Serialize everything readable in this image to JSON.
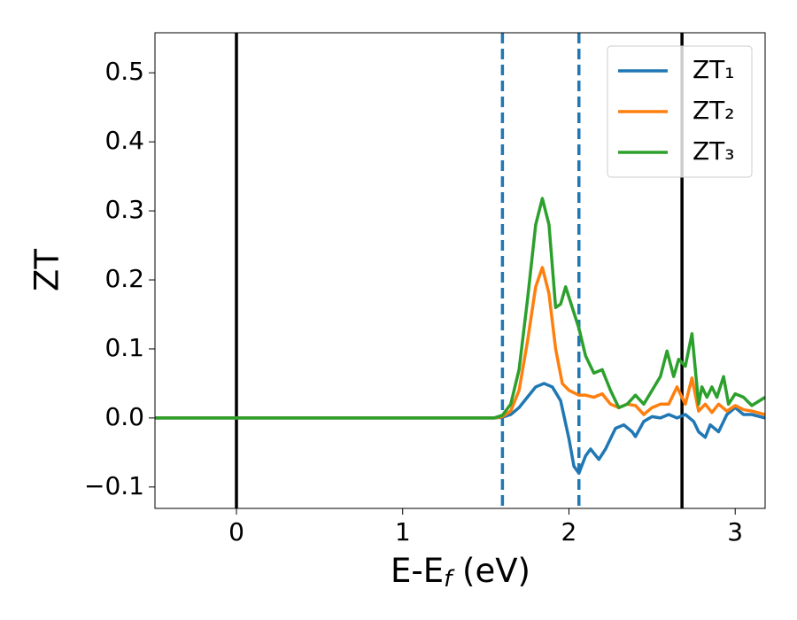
{
  "chart_data": {
    "type": "line",
    "xlabel": {
      "main": "E-E",
      "sub": "f",
      "unit": "(eV)"
    },
    "ylabel": "ZT",
    "xlim": [
      -0.49,
      3.18
    ],
    "ylim": [
      -0.131,
      0.558
    ],
    "xticks": [
      0,
      1,
      2,
      3
    ],
    "yticks": [
      {
        "value": -0.1,
        "label": "−0.1"
      },
      {
        "value": 0,
        "label": "0.0"
      },
      0.1,
      0.2,
      0.3,
      0.4,
      0.5
    ],
    "legend": "upper right",
    "vlines": [
      {
        "x": 0,
        "color": "#000000",
        "style": "solid"
      },
      {
        "x": 2.68,
        "color": "#000000",
        "style": "solid"
      },
      {
        "x": 1.6,
        "color": "#1f77b4",
        "style": "dashed"
      },
      {
        "x": 2.06,
        "color": "#1f77b4",
        "style": "dashed"
      }
    ],
    "series": [
      {
        "name": "ZT₁",
        "color": "#1f77b4",
        "x": [
          -0.49,
          1.55,
          1.6,
          1.65,
          1.7,
          1.75,
          1.8,
          1.85,
          1.9,
          1.95,
          2.0,
          2.03,
          2.06,
          2.1,
          2.13,
          2.18,
          2.22,
          2.28,
          2.33,
          2.38,
          2.4,
          2.45,
          2.5,
          2.55,
          2.6,
          2.65,
          2.7,
          2.75,
          2.78,
          2.82,
          2.85,
          2.9,
          2.95,
          3.0,
          3.05,
          3.1,
          3.18
        ],
        "values": [
          0,
          0,
          0.001,
          0.005,
          0.015,
          0.03,
          0.045,
          0.05,
          0.045,
          0.025,
          -0.03,
          -0.07,
          -0.08,
          -0.055,
          -0.045,
          -0.06,
          -0.045,
          -0.015,
          -0.01,
          -0.02,
          -0.027,
          -0.005,
          0.002,
          0,
          0.005,
          0,
          0.005,
          -0.005,
          -0.02,
          -0.028,
          -0.01,
          -0.02,
          0.005,
          0.015,
          0.005,
          0.005,
          0
        ]
      },
      {
        "name": "ZT₂",
        "color": "#ff7f0e",
        "x": [
          -0.49,
          1.55,
          1.6,
          1.65,
          1.7,
          1.75,
          1.8,
          1.84,
          1.88,
          1.92,
          1.96,
          2.0,
          2.06,
          2.1,
          2.15,
          2.2,
          2.25,
          2.3,
          2.35,
          2.4,
          2.45,
          2.5,
          2.55,
          2.6,
          2.65,
          2.7,
          2.74,
          2.78,
          2.82,
          2.86,
          2.9,
          2.95,
          3.0,
          3.05,
          3.1,
          3.18
        ],
        "values": [
          0,
          0,
          0.002,
          0.01,
          0.04,
          0.11,
          0.19,
          0.218,
          0.18,
          0.1,
          0.05,
          0.04,
          0.033,
          0.033,
          0.03,
          0.035,
          0.02,
          0.015,
          0.02,
          0.018,
          0.005,
          0.015,
          0.02,
          0.02,
          0.045,
          0.02,
          0.058,
          0.01,
          0.02,
          0.008,
          0.02,
          0.01,
          0.018,
          0.012,
          0.01,
          0.005
        ]
      },
      {
        "name": "ZT₃",
        "color": "#2ca02c",
        "x": [
          -0.49,
          1.55,
          1.6,
          1.65,
          1.7,
          1.75,
          1.8,
          1.84,
          1.88,
          1.92,
          1.95,
          1.98,
          2.02,
          2.06,
          2.1,
          2.15,
          2.2,
          2.25,
          2.3,
          2.35,
          2.4,
          2.45,
          2.5,
          2.55,
          2.59,
          2.63,
          2.66,
          2.7,
          2.74,
          2.78,
          2.8,
          2.83,
          2.86,
          2.89,
          2.93,
          2.96,
          3.0,
          3.05,
          3.1,
          3.18
        ],
        "values": [
          0,
          0,
          0.004,
          0.02,
          0.07,
          0.17,
          0.28,
          0.318,
          0.28,
          0.16,
          0.165,
          0.19,
          0.16,
          0.13,
          0.09,
          0.065,
          0.07,
          0.04,
          0.015,
          0.02,
          0.033,
          0.02,
          0.04,
          0.06,
          0.097,
          0.06,
          0.085,
          0.075,
          0.122,
          0.02,
          0.045,
          0.03,
          0.045,
          0.03,
          0.06,
          0.02,
          0.035,
          0.03,
          0.018,
          0.03
        ]
      }
    ]
  }
}
